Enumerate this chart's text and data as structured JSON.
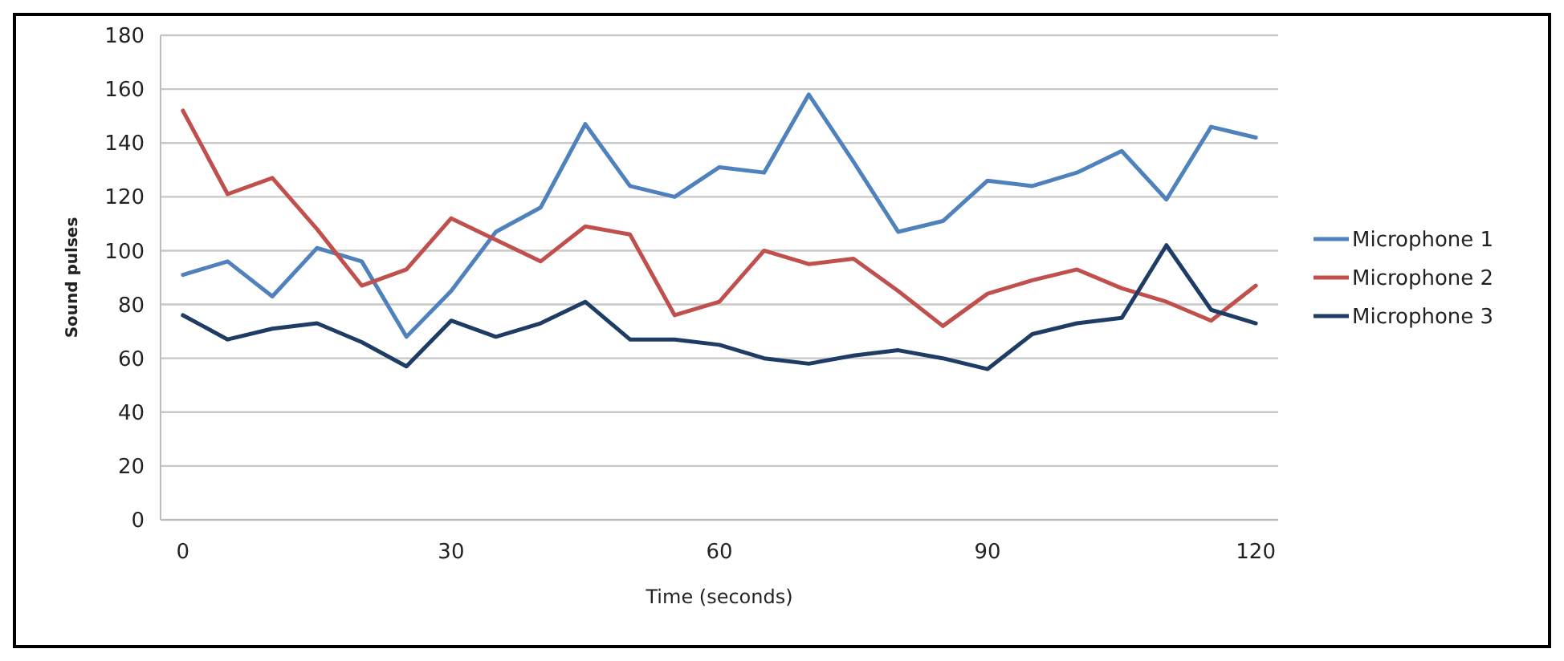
{
  "chart_data": {
    "type": "line",
    "xlabel": "Time (seconds)",
    "ylabel": "Sound pulses",
    "x": [
      0,
      5,
      10,
      15,
      20,
      25,
      30,
      35,
      40,
      45,
      50,
      55,
      60,
      65,
      70,
      75,
      80,
      85,
      90,
      95,
      100,
      105,
      110,
      115,
      120
    ],
    "xlim": [
      -2.5,
      122.5
    ],
    "xticks": [
      0,
      30,
      60,
      90,
      120
    ],
    "ylim": [
      0,
      180
    ],
    "yticks": [
      0,
      20,
      40,
      60,
      80,
      100,
      120,
      140,
      160,
      180
    ],
    "grid": "y",
    "legend": "right",
    "marker": "none",
    "line_style": "solid",
    "series": [
      {
        "name": "Microphone 1",
        "color": "#4f81bd",
        "values": [
          91,
          96,
          83,
          101,
          96,
          68,
          85,
          107,
          116,
          147,
          124,
          120,
          131,
          129,
          158,
          133,
          107,
          111,
          126,
          124,
          129,
          137,
          119,
          146,
          142
        ]
      },
      {
        "name": "Microphone 2",
        "color": "#c0504d",
        "values": [
          152,
          121,
          127,
          108,
          87,
          93,
          112,
          104,
          96,
          109,
          106,
          76,
          81,
          100,
          95,
          97,
          85,
          72,
          84,
          89,
          93,
          86,
          81,
          74,
          87
        ]
      },
      {
        "name": "Microphone 3",
        "color": "#1f3d64",
        "values": [
          76,
          67,
          71,
          73,
          66,
          57,
          74,
          68,
          73,
          81,
          67,
          67,
          65,
          60,
          58,
          61,
          63,
          60,
          56,
          69,
          73,
          75,
          102,
          78,
          73
        ]
      }
    ]
  }
}
